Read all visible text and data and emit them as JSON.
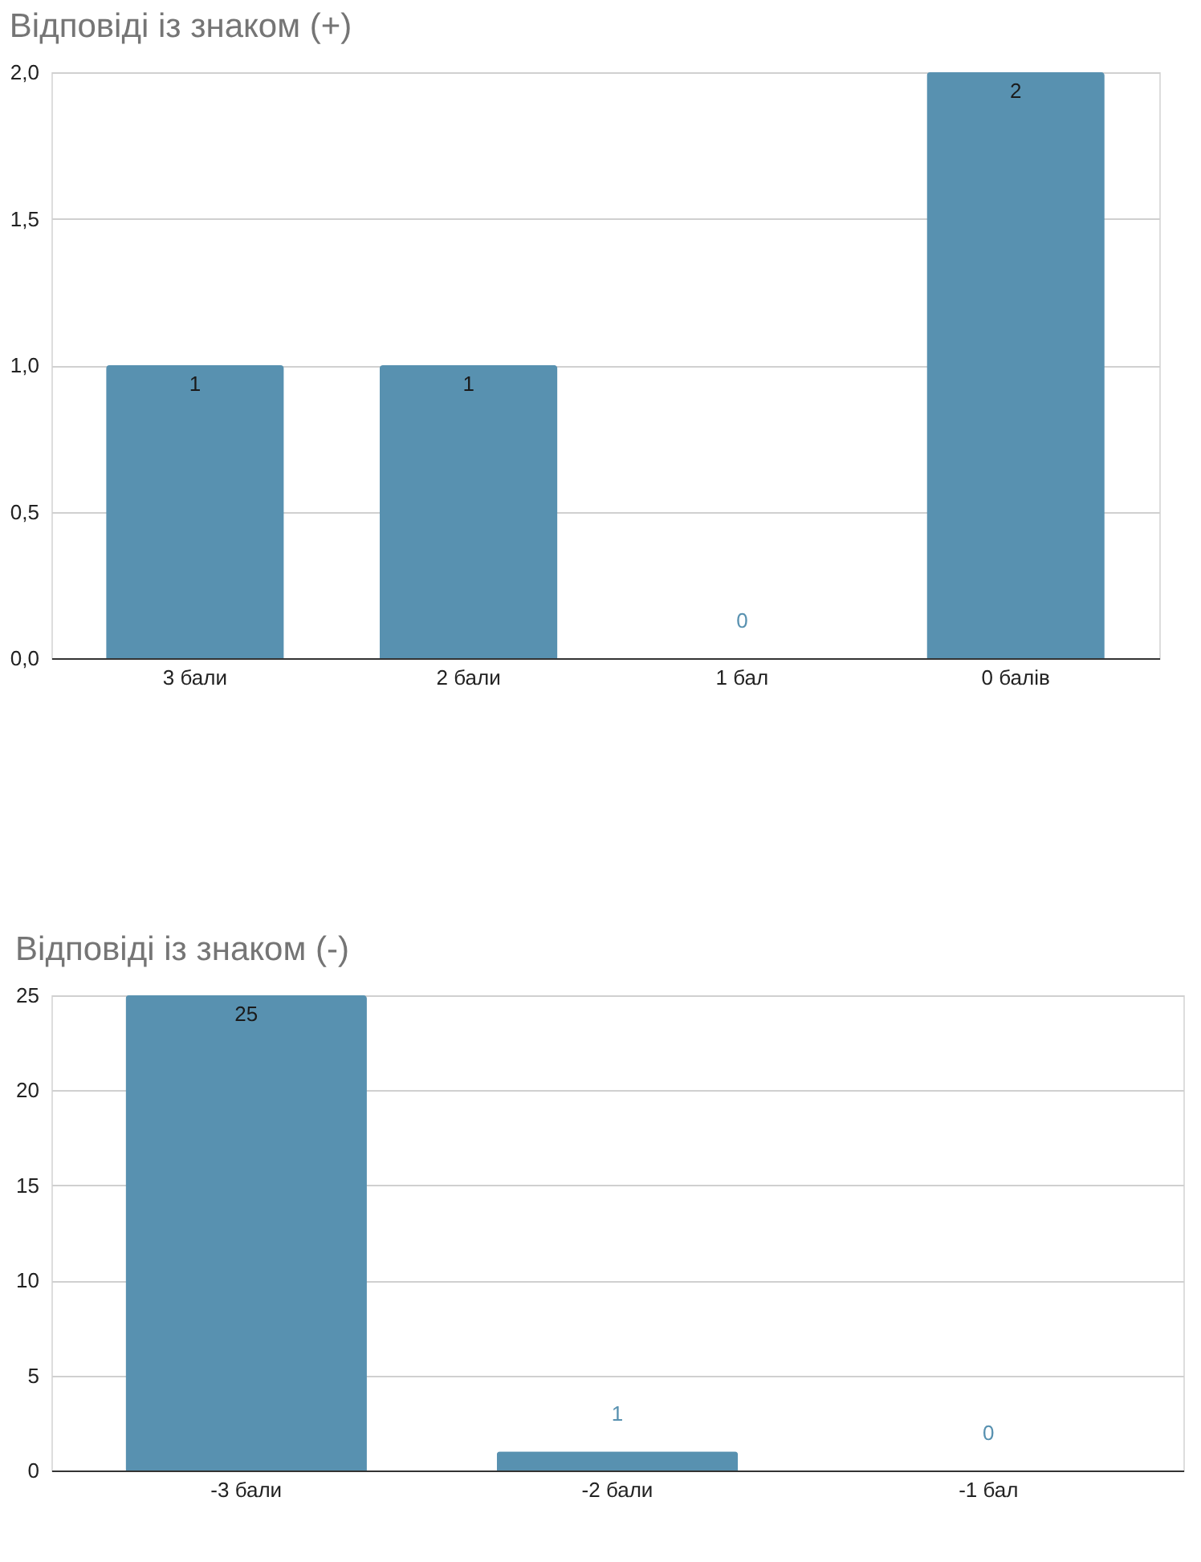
{
  "chart_data": [
    {
      "type": "bar",
      "title": "Відповіді із знаком (+)",
      "categories": [
        "3 бали",
        "2 бали",
        "1 бал",
        "0 балів"
      ],
      "values": [
        1,
        1,
        0,
        2
      ],
      "color": "#5891b0",
      "ylim": [
        0,
        2
      ],
      "yticks": [
        {
          "value": 0,
          "label": "0,0"
        },
        {
          "value": 0.5,
          "label": "0,5"
        },
        {
          "value": 1,
          "label": "1,0"
        },
        {
          "value": 1.5,
          "label": "1,5"
        },
        {
          "value": 2,
          "label": "2,0"
        }
      ],
      "grid": "y",
      "data_labels": true
    },
    {
      "type": "bar",
      "title": "Відповіді із знаком (-)",
      "categories": [
        "-3 бали",
        "-2 бали",
        "-1 бал"
      ],
      "values": [
        25,
        1,
        0
      ],
      "color": "#5891b0",
      "ylim": [
        0,
        25
      ],
      "yticks": [
        0,
        5,
        10,
        15,
        20,
        25
      ],
      "grid": "y",
      "data_labels": true
    }
  ]
}
